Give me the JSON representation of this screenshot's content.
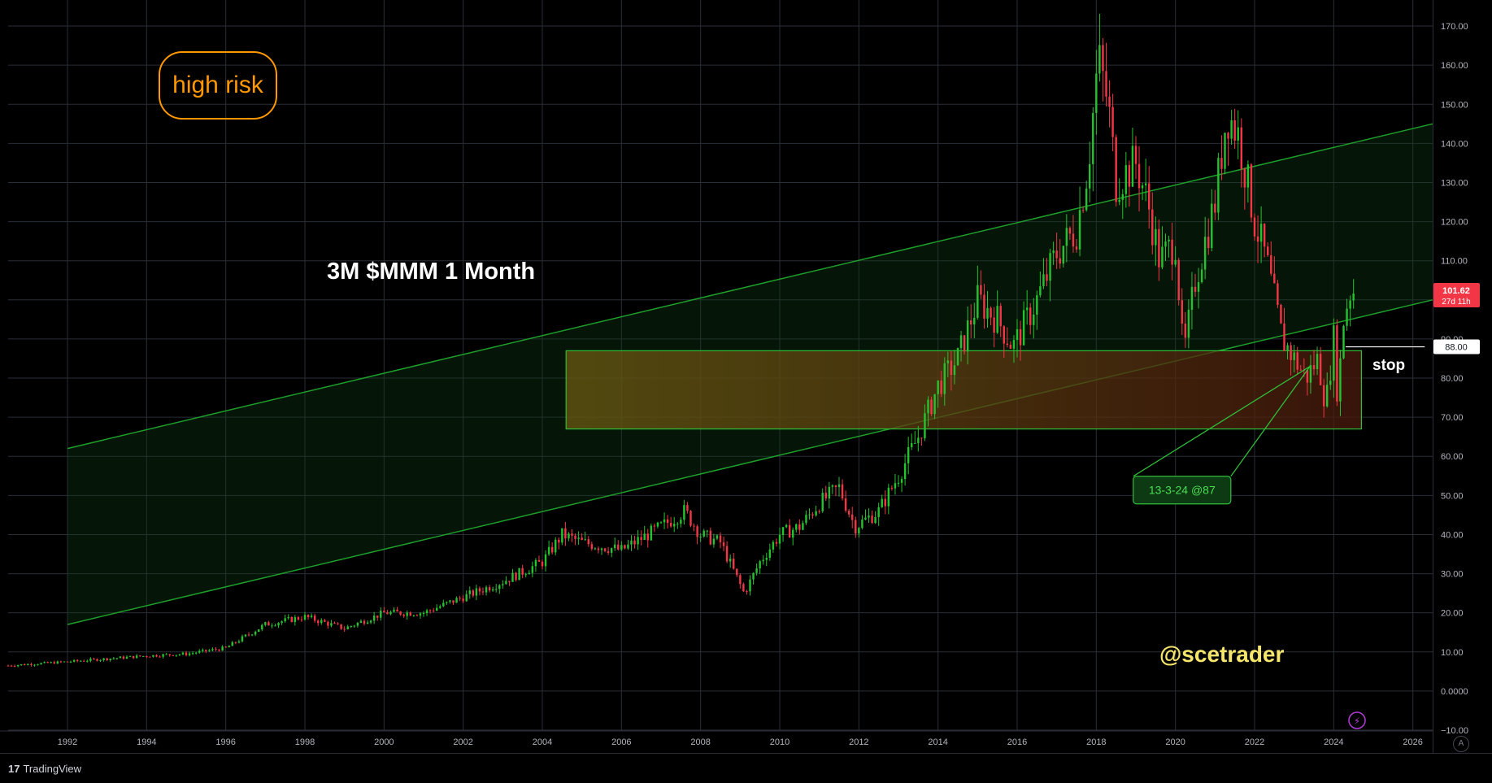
{
  "branding": {
    "name": "TradingView"
  },
  "auto_label": "A",
  "chart_data": {
    "type": "candlestick",
    "title": "3M $MMM 1 Month",
    "x_range": [
      1990.5,
      2026.5
    ],
    "ylim": [
      -10,
      175
    ],
    "y_ticks": [
      "170.00",
      "160.00",
      "150.00",
      "140.00",
      "130.00",
      "120.00",
      "110.00",
      "100.00",
      "90.00",
      "80.00",
      "70.00",
      "60.00",
      "50.00",
      "40.00",
      "30.00",
      "20.00",
      "10.00",
      "0.0000",
      "−10.00"
    ],
    "y_tick_values": [
      170,
      160,
      150,
      140,
      130,
      120,
      110,
      100,
      90,
      80,
      70,
      60,
      50,
      40,
      30,
      20,
      10,
      0,
      -10
    ],
    "x_ticks": [
      "1992",
      "1994",
      "1996",
      "1998",
      "2000",
      "2002",
      "2004",
      "2006",
      "2008",
      "2010",
      "2012",
      "2014",
      "2016",
      "2018",
      "2020",
      "2022",
      "2024",
      "2026"
    ],
    "x_tick_values": [
      1992,
      1994,
      1996,
      1998,
      2000,
      2002,
      2004,
      2006,
      2008,
      2010,
      2012,
      2014,
      2016,
      2018,
      2020,
      2022,
      2024,
      2026
    ],
    "price_path": [
      [
        1990.5,
        6.5
      ],
      [
        1992,
        7.5
      ],
      [
        1994,
        9
      ],
      [
        1995,
        9.5
      ],
      [
        1996,
        11
      ],
      [
        1997,
        17
      ],
      [
        1998,
        19
      ],
      [
        1999,
        16
      ],
      [
        2000,
        20
      ],
      [
        2001,
        20
      ],
      [
        2002,
        24
      ],
      [
        2003,
        28
      ],
      [
        2004,
        33
      ],
      [
        2004.5,
        40
      ],
      [
        2005,
        38
      ],
      [
        2006,
        36
      ],
      [
        2007,
        42
      ],
      [
        2007.6,
        46
      ],
      [
        2008,
        40
      ],
      [
        2008.5,
        38
      ],
      [
        2009.1,
        25
      ],
      [
        2009.5,
        33
      ],
      [
        2010,
        40
      ],
      [
        2010.5,
        42
      ],
      [
        2011,
        48
      ],
      [
        2011.5,
        52
      ],
      [
        2011.9,
        42
      ],
      [
        2012.5,
        46
      ],
      [
        2013,
        55
      ],
      [
        2013.5,
        65
      ],
      [
        2014,
        78
      ],
      [
        2014.5,
        85
      ],
      [
        2015,
        100
      ],
      [
        2015.5,
        95
      ],
      [
        2015.9,
        88
      ],
      [
        2016.5,
        100
      ],
      [
        2017,
        112
      ],
      [
        2017.5,
        118
      ],
      [
        2017.8,
        135
      ],
      [
        2018.05,
        162
      ],
      [
        2018.3,
        150
      ],
      [
        2018.5,
        130
      ],
      [
        2019,
        135
      ],
      [
        2019.3,
        125
      ],
      [
        2019.6,
        110
      ],
      [
        2020,
        115
      ],
      [
        2020.2,
        85
      ],
      [
        2020.5,
        105
      ],
      [
        2021,
        125
      ],
      [
        2021.3,
        148
      ],
      [
        2021.6,
        142
      ],
      [
        2022,
        120
      ],
      [
        2022.3,
        110
      ],
      [
        2022.7,
        90
      ],
      [
        2023,
        85
      ],
      [
        2023.3,
        80
      ],
      [
        2023.6,
        85
      ],
      [
        2023.8,
        73
      ],
      [
        2024.0,
        90
      ],
      [
        2024.1,
        75
      ],
      [
        2024.25,
        95
      ],
      [
        2024.4,
        102
      ],
      [
        2024.5,
        101.62
      ]
    ],
    "channel_upper": [
      [
        1992,
        62
      ],
      [
        2026.5,
        145
      ]
    ],
    "channel_lower": [
      [
        1992,
        17
      ],
      [
        2026.5,
        100
      ]
    ],
    "zone": {
      "x": [
        2004.6,
        2024.7
      ],
      "y": [
        67,
        87
      ]
    },
    "stop_line": {
      "x": [
        2024.3,
        2026.3
      ],
      "y": 88
    },
    "callout_line": [
      [
        2023.4,
        83
      ],
      [
        2021.4,
        52
      ]
    ],
    "labels": {
      "price_badge": "101.62",
      "price_badge_sub": "27d 11h",
      "stop_badge": "88.00",
      "stop_text": "stop",
      "callout": "13-3-24 @87",
      "risk": "high risk",
      "handle": "@scetrader"
    },
    "colors": {
      "up": "#26c12f",
      "down": "#f23645",
      "channel": "#1e9e2a",
      "zone_border": "#2fbf3a",
      "risk": "#ff9800",
      "handle": "#f5e56b",
      "badge": "#f23645"
    }
  }
}
